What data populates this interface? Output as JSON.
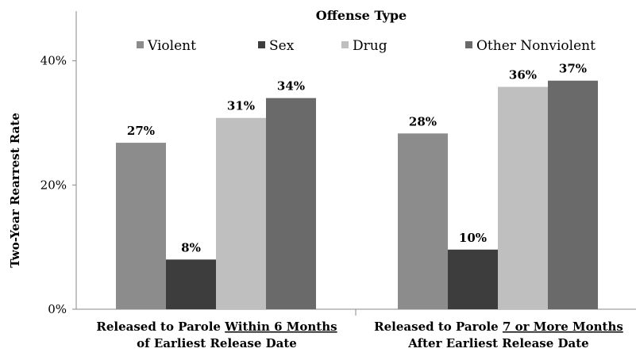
{
  "chart_data": {
    "type": "bar",
    "ylabel": "Two-Year Rearrest Rate",
    "ylim": [
      0,
      48
    ],
    "yticks": [
      {
        "value": 0,
        "label": "0%"
      },
      {
        "value": 20,
        "label": "20%"
      },
      {
        "value": 40,
        "label": "40%"
      }
    ],
    "legend": {
      "title": "Offense Type",
      "placement": "top-center"
    },
    "categories": [
      {
        "line1_pre": "Released to Parole ",
        "line1_under": "Within 6 Months",
        "line2": "of Earliest Release Date"
      },
      {
        "line1_pre": "Released to Parole ",
        "line1_under": "7 or More Months",
        "line2": "After Earliest Release Date"
      }
    ],
    "series": [
      {
        "name": "Violent",
        "color": "#8c8c8c",
        "values": [
          26.8,
          28.3
        ],
        "labels": [
          "27%",
          "28%"
        ]
      },
      {
        "name": "Sex",
        "color": "#3d3d3d",
        "values": [
          8.0,
          9.6
        ],
        "labels": [
          "8%",
          "10%"
        ]
      },
      {
        "name": "Drug",
        "color": "#bfbfbf",
        "values": [
          30.8,
          35.8
        ],
        "labels": [
          "31%",
          "36%"
        ]
      },
      {
        "name": "Other Nonviolent",
        "color": "#6a6a6a",
        "values": [
          34.0,
          36.8
        ],
        "labels": [
          "34%",
          "37%"
        ]
      }
    ]
  }
}
